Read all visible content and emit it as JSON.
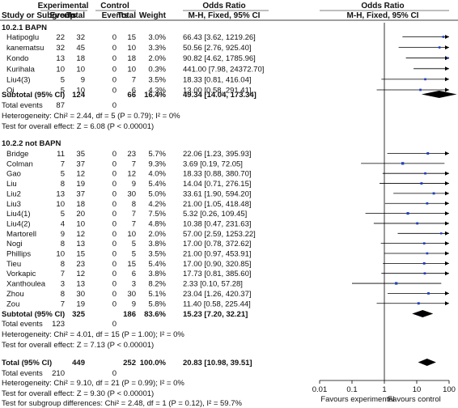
{
  "header": {
    "experimental": "Experimental",
    "control": "Control",
    "odds_ratio": "Odds Ratio",
    "odds_ratio_plot": "Odds Ratio",
    "study": "Study or Subgroup",
    "events": "Events",
    "total": "Total",
    "events2": "Events",
    "total2": "Total",
    "weight": "Weight",
    "method": "M-H, Fixed, 95% CI",
    "method_plot": "M-H, Fixed, 95% CI"
  },
  "subgroup1": {
    "title": "10.2.1 BAPN",
    "subtotal_label": "Subtotal (95% CI)",
    "subtotal_exp_total": "124",
    "subtotal_ctl_total": "66",
    "subtotal_weight": "16.4%",
    "subtotal_ci": "49.34 [14.04, 173.34]",
    "total_events_label": "Total events",
    "total_events_exp": "87",
    "total_events_ctl": "0",
    "heterogeneity": "Heterogeneity: Chi² = 2.44, df = 5 (P = 0.79); I² = 0%",
    "overall": "Test for overall effect: Z = 6.08 (P < 0.00001)"
  },
  "subgroup2": {
    "title": "10.2.2 not BAPN",
    "subtotal_label": "Subtotal (95% CI)",
    "subtotal_exp_total": "325",
    "subtotal_ctl_total": "186",
    "subtotal_weight": "83.6%",
    "subtotal_ci": "15.23 [7.20, 32.21]",
    "total_events_label": "Total events",
    "total_events_exp": "123",
    "total_events_ctl": "0",
    "heterogeneity": "Heterogeneity: Chi² = 4.01, df = 15 (P = 1.00); I² = 0%",
    "overall": "Test for overall effect: Z = 7.13 (P < 0.00001)"
  },
  "total": {
    "label": "Total (95% CI)",
    "exp_total": "449",
    "ctl_total": "252",
    "weight": "100.0%",
    "ci": "20.83 [10.98, 39.51]",
    "total_events_label": "Total events",
    "total_events_exp": "210",
    "total_events_ctl": "0",
    "heterogeneity": "Heterogeneity: Chi² = 9.10, df = 21 (P = 0.99); I² = 0%",
    "overall": "Test for overall effect: Z = 9.30 (P < 0.00001)",
    "subgroup_diff": "Test for subgroup differences: Chi² = 2.48, df = 1 (P = 0.12), I² = 59.7%"
  },
  "axis": {
    "ticks": [
      "0.01",
      "0.1",
      "1",
      "10",
      "100"
    ],
    "left_label": "Favours experimental",
    "right_label": "Favours control"
  },
  "colors": {
    "marker": "#1f3fbf",
    "line": "#000000",
    "diamond": "#000000"
  },
  "chart_data": {
    "type": "forest",
    "xscale": "log",
    "xlim": [
      0.01,
      100
    ],
    "null_value": 1,
    "subgroups": [
      {
        "name": "10.2.1 BAPN",
        "studies": [
          {
            "study": "Hatipoglu",
            "exp_events": 22,
            "exp_total": 32,
            "ctl_events": 0,
            "ctl_total": 15,
            "weight": "3.0%",
            "or": 66.43,
            "lo": 3.62,
            "hi": 1219.26,
            "ci_text": "66.43 [3.62, 1219.26]"
          },
          {
            "study": "kanematsu",
            "exp_events": 32,
            "exp_total": 45,
            "ctl_events": 0,
            "ctl_total": 10,
            "weight": "3.3%",
            "or": 50.56,
            "lo": 2.76,
            "hi": 925.4,
            "ci_text": "50.56 [2.76, 925.40]"
          },
          {
            "study": "Kondo",
            "exp_events": 13,
            "exp_total": 18,
            "ctl_events": 0,
            "ctl_total": 18,
            "weight": "2.0%",
            "or": 90.82,
            "lo": 4.62,
            "hi": 1785.96,
            "ci_text": "90.82 [4.62, 1785.96]"
          },
          {
            "study": "Kurihala",
            "exp_events": 10,
            "exp_total": 10,
            "ctl_events": 0,
            "ctl_total": 10,
            "weight": "0.3%",
            "or": 441.0,
            "lo": 7.98,
            "hi": 24372.7,
            "ci_text": "441.00 [7.98, 24372.70]"
          },
          {
            "study": "Liu4(3)",
            "exp_events": 5,
            "exp_total": 9,
            "ctl_events": 0,
            "ctl_total": 7,
            "weight": "3.5%",
            "or": 18.33,
            "lo": 0.81,
            "hi": 416.04,
            "ci_text": "18.33 [0.81, 416.04]"
          },
          {
            "study": "Qi",
            "exp_events": 5,
            "exp_total": 10,
            "ctl_events": 0,
            "ctl_total": 6,
            "weight": "4.3%",
            "or": 13.0,
            "lo": 0.58,
            "hi": 291.41,
            "ci_text": "13.00 [0.58, 291.41]"
          }
        ],
        "subtotal": {
          "or": 49.34,
          "lo": 14.04,
          "hi": 173.34
        }
      },
      {
        "name": "10.2.2 not BAPN",
        "studies": [
          {
            "study": "Bridge",
            "exp_events": 11,
            "exp_total": 35,
            "ctl_events": 0,
            "ctl_total": 23,
            "weight": "5.7%",
            "or": 22.06,
            "lo": 1.23,
            "hi": 395.93,
            "ci_text": "22.06 [1.23, 395.93]"
          },
          {
            "study": "Colman",
            "exp_events": 7,
            "exp_total": 37,
            "ctl_events": 0,
            "ctl_total": 7,
            "weight": "9.3%",
            "or": 3.69,
            "lo": 0.19,
            "hi": 72.05,
            "ci_text": "3.69 [0.19, 72.05]"
          },
          {
            "study": "Gao",
            "exp_events": 5,
            "exp_total": 12,
            "ctl_events": 0,
            "ctl_total": 12,
            "weight": "4.0%",
            "or": 18.33,
            "lo": 0.88,
            "hi": 380.7,
            "ci_text": "18.33 [0.88, 380.70]"
          },
          {
            "study": "Liu",
            "exp_events": 8,
            "exp_total": 19,
            "ctl_events": 0,
            "ctl_total": 9,
            "weight": "5.4%",
            "or": 14.04,
            "lo": 0.71,
            "hi": 276.15,
            "ci_text": "14.04 [0.71, 276.15]"
          },
          {
            "study": "Liu2",
            "exp_events": 13,
            "exp_total": 37,
            "ctl_events": 0,
            "ctl_total": 30,
            "weight": "5.0%",
            "or": 33.61,
            "lo": 1.9,
            "hi": 594.2,
            "ci_text": "33.61 [1.90, 594.20]"
          },
          {
            "study": "Liu3",
            "exp_events": 10,
            "exp_total": 18,
            "ctl_events": 0,
            "ctl_total": 8,
            "weight": "4.2%",
            "or": 21.0,
            "lo": 1.05,
            "hi": 418.48,
            "ci_text": "21.00 [1.05, 418.48]"
          },
          {
            "study": "Liu4(1)",
            "exp_events": 5,
            "exp_total": 20,
            "ctl_events": 0,
            "ctl_total": 7,
            "weight": "7.5%",
            "or": 5.32,
            "lo": 0.26,
            "hi": 109.45,
            "ci_text": "5.32 [0.26, 109.45]"
          },
          {
            "study": "Liu4(2)",
            "exp_events": 4,
            "exp_total": 10,
            "ctl_events": 0,
            "ctl_total": 7,
            "weight": "4.8%",
            "or": 10.38,
            "lo": 0.47,
            "hi": 231.63,
            "ci_text": "10.38 [0.47, 231.63]"
          },
          {
            "study": "Martorell",
            "exp_events": 9,
            "exp_total": 12,
            "ctl_events": 0,
            "ctl_total": 10,
            "weight": "2.0%",
            "or": 57.0,
            "lo": 2.59,
            "hi": 1253.22,
            "ci_text": "57.00 [2.59, 1253.22]"
          },
          {
            "study": "Nogi",
            "exp_events": 8,
            "exp_total": 13,
            "ctl_events": 0,
            "ctl_total": 5,
            "weight": "3.8%",
            "or": 17.0,
            "lo": 0.78,
            "hi": 372.62,
            "ci_text": "17.00 [0.78, 372.62]"
          },
          {
            "study": "Phillips",
            "exp_events": 10,
            "exp_total": 15,
            "ctl_events": 0,
            "ctl_total": 5,
            "weight": "3.5%",
            "or": 21.0,
            "lo": 0.97,
            "hi": 453.91,
            "ci_text": "21.00 [0.97, 453.91]"
          },
          {
            "study": "Tieu",
            "exp_events": 8,
            "exp_total": 23,
            "ctl_events": 0,
            "ctl_total": 15,
            "weight": "5.4%",
            "or": 17.0,
            "lo": 0.9,
            "hi": 320.85,
            "ci_text": "17.00 [0.90, 320.85]"
          },
          {
            "study": "Vorkapic",
            "exp_events": 7,
            "exp_total": 12,
            "ctl_events": 0,
            "ctl_total": 6,
            "weight": "3.8%",
            "or": 17.73,
            "lo": 0.81,
            "hi": 385.6,
            "ci_text": "17.73 [0.81, 385.60]"
          },
          {
            "study": "Xanthoulea",
            "exp_events": 3,
            "exp_total": 13,
            "ctl_events": 0,
            "ctl_total": 3,
            "weight": "8.2%",
            "or": 2.33,
            "lo": 0.1,
            "hi": 57.28,
            "ci_text": "2.33 [0.10, 57.28]"
          },
          {
            "study": "Zhou",
            "exp_events": 8,
            "exp_total": 30,
            "ctl_events": 0,
            "ctl_total": 30,
            "weight": "5.1%",
            "or": 23.04,
            "lo": 1.26,
            "hi": 420.37,
            "ci_text": "23.04 [1.26, 420.37]"
          },
          {
            "study": "Zou",
            "exp_events": 7,
            "exp_total": 19,
            "ctl_events": 0,
            "ctl_total": 9,
            "weight": "5.8%",
            "or": 11.4,
            "lo": 0.58,
            "hi": 225.44,
            "ci_text": "11.40 [0.58, 225.44]"
          }
        ],
        "subtotal": {
          "or": 15.23,
          "lo": 7.2,
          "hi": 32.21
        }
      }
    ],
    "overall": {
      "or": 20.83,
      "lo": 10.98,
      "hi": 39.51
    }
  }
}
